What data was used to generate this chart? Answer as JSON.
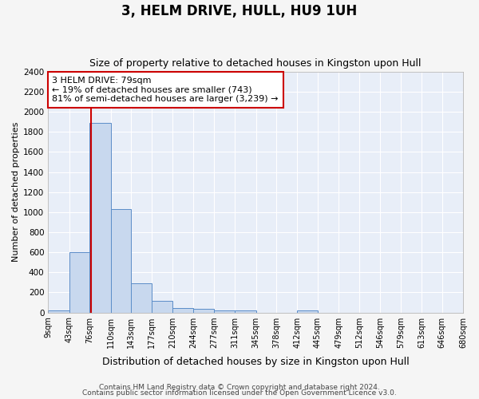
{
  "title": "3, HELM DRIVE, HULL, HU9 1UH",
  "subtitle": "Size of property relative to detached houses in Kingston upon Hull",
  "xlabel": "Distribution of detached houses by size in Kingston upon Hull",
  "ylabel": "Number of detached properties",
  "footnote1": "Contains HM Land Registry data © Crown copyright and database right 2024.",
  "footnote2": "Contains public sector information licensed under the Open Government Licence v3.0.",
  "annotation_line1": "3 HELM DRIVE: 79sqm",
  "annotation_line2": "← 19% of detached houses are smaller (743)",
  "annotation_line3": "81% of semi-detached houses are larger (3,239) →",
  "property_size": 79,
  "bar_edges": [
    9,
    43,
    76,
    110,
    143,
    177,
    210,
    244,
    277,
    311,
    345,
    378,
    412,
    445,
    479,
    512,
    546,
    579,
    613,
    646,
    680
  ],
  "bar_heights": [
    20,
    600,
    1890,
    1030,
    290,
    115,
    45,
    35,
    20,
    20,
    0,
    0,
    20,
    0,
    0,
    0,
    0,
    0,
    0,
    0
  ],
  "bar_color": "#c8d8ee",
  "bar_edgecolor": "#5b8dc8",
  "bg_color": "#e8eef8",
  "grid_color": "#ffffff",
  "fig_color": "#f5f5f5",
  "vline_color": "#cc0000",
  "annotation_box_edgecolor": "#cc0000",
  "ylim": [
    0,
    2400
  ],
  "yticks": [
    0,
    200,
    400,
    600,
    800,
    1000,
    1200,
    1400,
    1600,
    1800,
    2000,
    2200,
    2400
  ],
  "title_fontsize": 12,
  "subtitle_fontsize": 9,
  "ylabel_fontsize": 8,
  "xlabel_fontsize": 9
}
